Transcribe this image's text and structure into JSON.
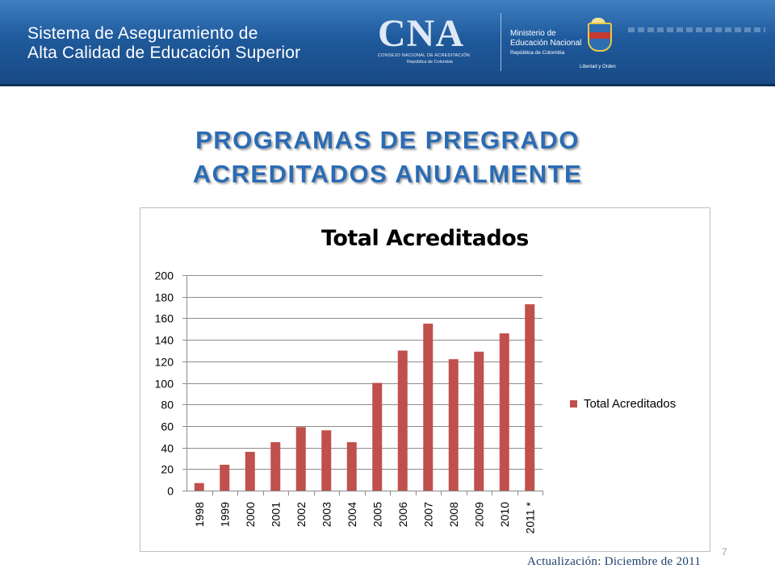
{
  "header": {
    "banner_line1": "Sistema de Aseguramiento de",
    "banner_line2": "Alta Calidad de Educación Superior",
    "cna_logo_text": "CNA",
    "cna_subtitle": "CONSEJO NACIONAL DE ACREDITACIÓN",
    "cna_subtitle2": "República de Colombia",
    "ministry_line1": "Ministerio de",
    "ministry_line2": "Educación Nacional",
    "ministry_line3": "República de Colombia",
    "crest_motto": "Libertad y Orden"
  },
  "slide": {
    "title_line1": "PROGRAMAS DE PREGRADO",
    "title_line2": "ACREDITADOS ANUALMENTE",
    "page_number": "7",
    "footnote": "Actualización: Diciembre de 2011"
  },
  "chart_data": {
    "type": "bar",
    "title": "Total Acreditados",
    "categories": [
      "1998",
      "1999",
      "2000",
      "2001",
      "2002",
      "2003",
      "2004",
      "2005",
      "2006",
      "2007",
      "2008",
      "2009",
      "2010",
      "2011 *"
    ],
    "series": [
      {
        "name": "Total Acreditados",
        "values": [
          7,
          24,
          36,
          45,
          59,
          56,
          45,
          100,
          130,
          155,
          122,
          129,
          146,
          173
        ]
      }
    ],
    "ylim": [
      0,
      200
    ],
    "yticks": [
      0,
      20,
      40,
      60,
      80,
      100,
      120,
      140,
      160,
      180,
      200
    ],
    "grid": true,
    "legend_position": "right",
    "bar_color": "#c0504d"
  }
}
